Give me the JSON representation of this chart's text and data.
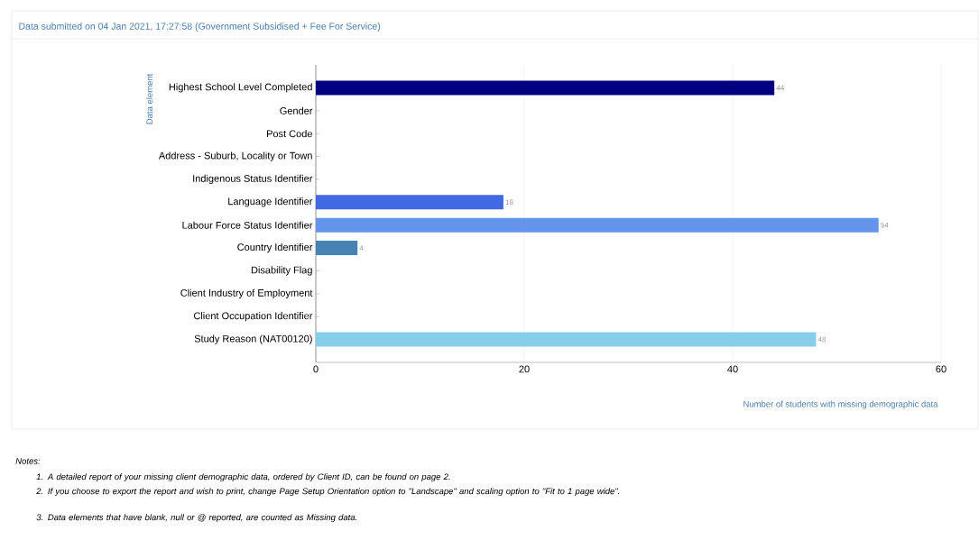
{
  "chart_data": {
    "type": "bar",
    "orientation": "horizontal",
    "title": "Data submitted on 04 Jan 2021, 17:27:58 (Government Subsidised + Fee For Service)",
    "xlabel": "Number of students with missing demographic data",
    "ylabel": "Data element",
    "categories": [
      "Highest School Level Completed",
      "Gender",
      "Post Code",
      "Address - Suburb, Locality or Town",
      "Indigenous Status Identifier",
      "Language Identifier",
      "Labour Force Status Identifier",
      "Country Identifier",
      "Disability Flag",
      "Client Industry of Employment",
      "Client Occupation Identifier",
      "Study Reason (NAT00120)"
    ],
    "values": [
      44,
      0,
      0,
      0,
      0,
      18,
      54,
      4,
      0,
      0,
      0,
      48
    ],
    "colors": [
      "#000080",
      null,
      null,
      null,
      null,
      "#4169e1",
      "#6495ed",
      "#4682b4",
      null,
      null,
      null,
      "#87ceeb"
    ],
    "value_labels": [
      "44",
      null,
      null,
      null,
      null,
      "18",
      "54",
      "4",
      null,
      null,
      null,
      "48"
    ],
    "xlim": [
      0,
      60
    ],
    "xticks": [
      0,
      20,
      40,
      60
    ],
    "grid": "x",
    "annotations": [
      "Notes:",
      "1. A detailed report of your missing client demographic data, ordered by Client ID, can be found on page 2.",
      "2. If you choose to export the report and wish to print, change Page Setup Orientation option to \"Landscape\" and scaling option to \"Fit to 1 page wide\".",
      "3. Data elements that have blank, null or @ reported, are counted as Missing data."
    ]
  }
}
